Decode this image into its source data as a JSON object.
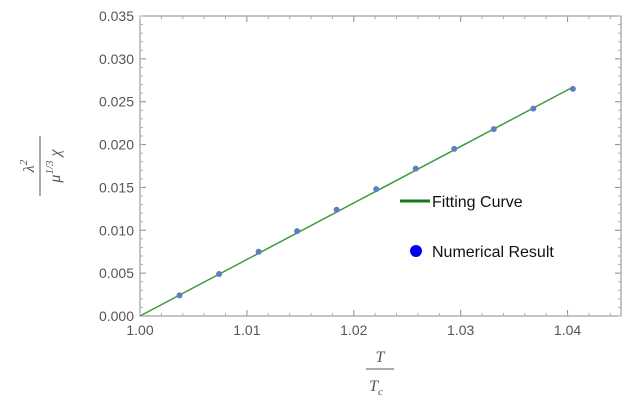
{
  "chart_data": {
    "type": "scatter",
    "title": "",
    "xlabel": {
      "numerator": "T",
      "denominator": "T",
      "denominator_subscript": "c"
    },
    "ylabel": {
      "numerator": "λ",
      "numerator_sup": "2",
      "denominator": "μ",
      "denominator_sup": "1/3",
      "denominator_suffix": "χ"
    },
    "xlim": [
      1.0,
      1.045
    ],
    "ylim": [
      0.0,
      0.035
    ],
    "xticks": [
      1.0,
      1.01,
      1.02,
      1.03,
      1.04
    ],
    "xtick_labels": [
      "1.00",
      "1.01",
      "1.02",
      "1.03",
      "1.04"
    ],
    "yticks": [
      0.0,
      0.005,
      0.01,
      0.015,
      0.02,
      0.025,
      0.03,
      0.035
    ],
    "ytick_labels": [
      "0.000",
      "0.005",
      "0.010",
      "0.015",
      "0.020",
      "0.025",
      "0.030",
      "0.035"
    ],
    "grid": false,
    "legend_position": "right",
    "series": [
      {
        "name": "Fitting Curve",
        "kind": "line",
        "color": "#3a9a3a",
        "legend_color": "#1a7a1a",
        "x": [
          1.0,
          1.0405
        ],
        "y": [
          0.0,
          0.0267
        ]
      },
      {
        "name": "Numerical Result",
        "kind": "scatter",
        "color": "#5b7fbf",
        "legend_color": "#0000ee",
        "x": [
          1.0037,
          1.0074,
          1.0111,
          1.0147,
          1.0184,
          1.0221,
          1.0258,
          1.0294,
          1.0331,
          1.0368,
          1.0405
        ],
        "y": [
          0.0024,
          0.0049,
          0.0075,
          0.0099,
          0.0124,
          0.0148,
          0.0172,
          0.0195,
          0.0218,
          0.0242,
          0.0265
        ]
      }
    ]
  }
}
